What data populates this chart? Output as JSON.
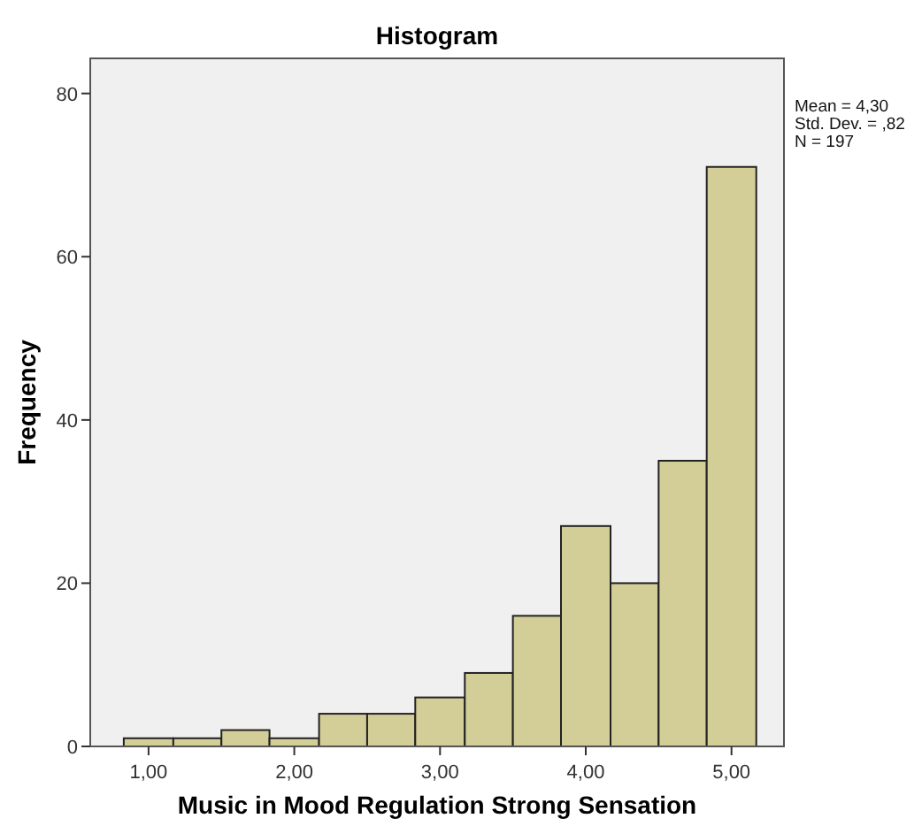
{
  "chart_data": {
    "type": "histogram",
    "title": "Histogram",
    "xlabel": "Music in Mood Regulation Strong Sensation",
    "ylabel": "Frequency",
    "bins": [
      0.83,
      1.17,
      1.5,
      1.83,
      2.17,
      2.5,
      2.83,
      3.17,
      3.5,
      3.83,
      4.17,
      4.5,
      4.83,
      5.17
    ],
    "values": [
      1,
      1,
      2,
      1,
      4,
      4,
      6,
      9,
      16,
      27,
      20,
      35,
      71
    ],
    "color": "#d3ce97",
    "xlim": [
      0.6,
      5.36
    ],
    "ylim": [
      0,
      84.3
    ],
    "xticks": [
      {
        "value": 1,
        "label": "1,00"
      },
      {
        "value": 2,
        "label": "2,00"
      },
      {
        "value": 3,
        "label": "3,00"
      },
      {
        "value": 4,
        "label": "4,00"
      },
      {
        "value": 5,
        "label": "5,00"
      }
    ],
    "yticks": [
      0,
      20,
      40,
      60,
      80
    ],
    "annotations": [
      "Mean = 4,30",
      "Std. Dev. = ,82",
      "N = 197"
    ],
    "grid": false
  }
}
